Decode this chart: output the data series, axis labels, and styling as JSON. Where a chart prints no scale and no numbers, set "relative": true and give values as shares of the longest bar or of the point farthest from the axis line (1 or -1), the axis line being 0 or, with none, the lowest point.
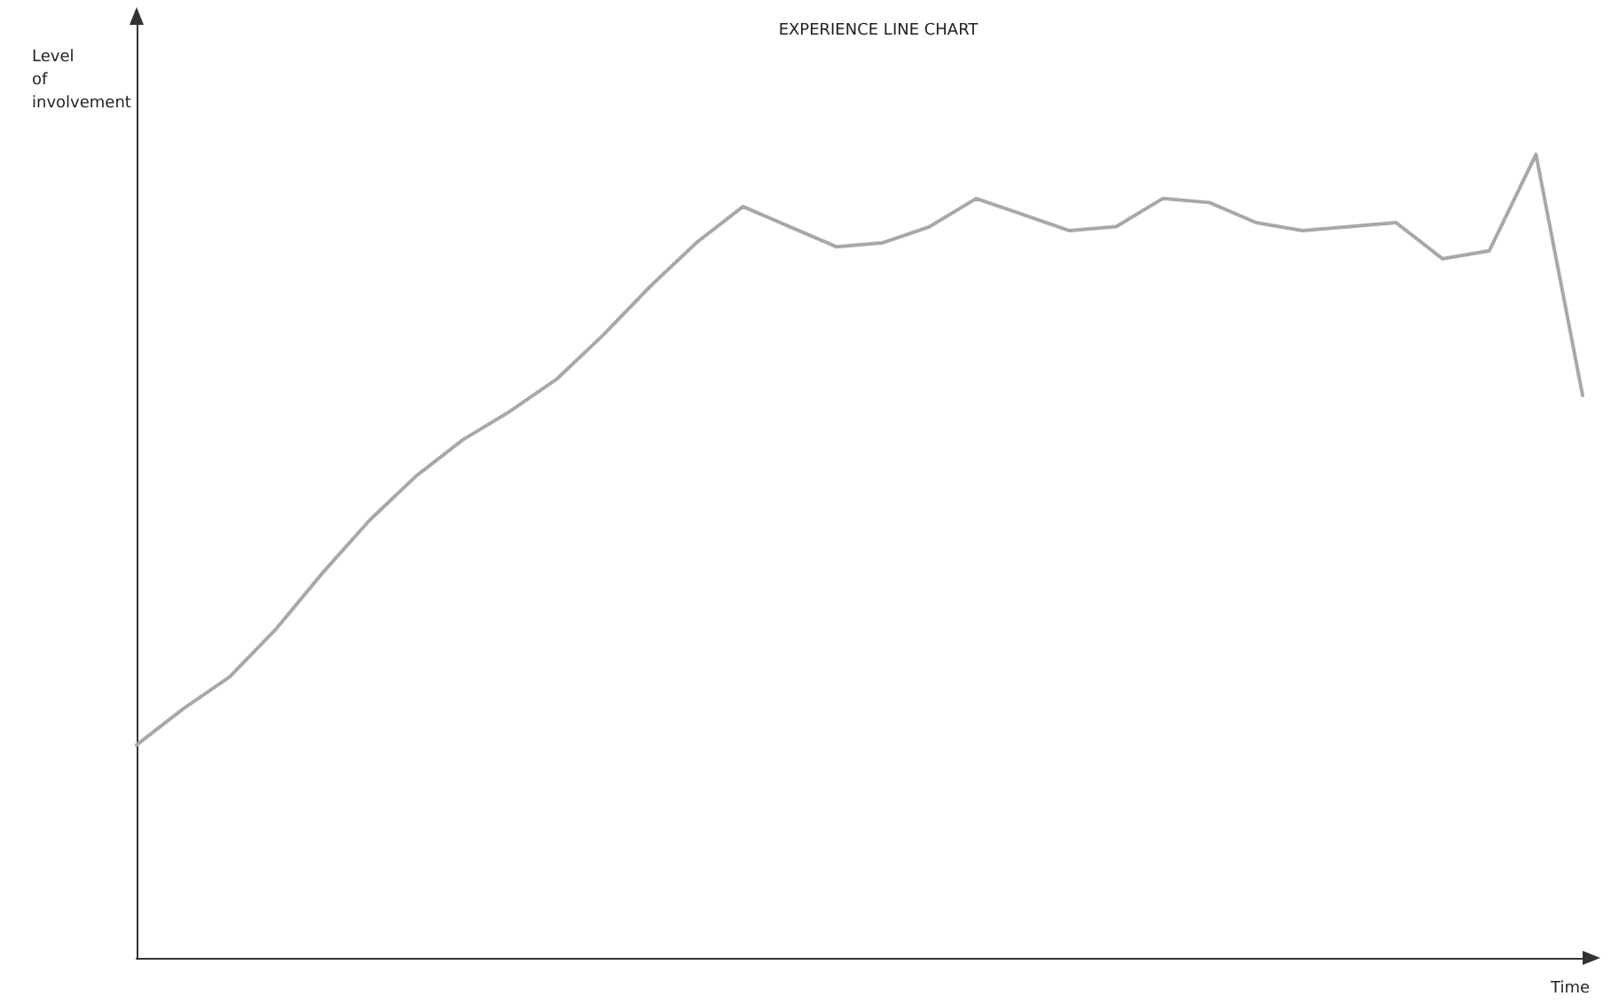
{
  "chart_data": {
    "type": "line",
    "title": "EXPERIENCE LINE CHART",
    "xlabel": "Time",
    "ylabel": "Level\nof\ninvolvement",
    "relative": true,
    "categories": [
      null,
      null,
      null,
      null,
      null,
      null,
      null,
      null,
      null,
      null,
      null,
      null,
      null,
      null,
      null,
      null,
      null,
      null,
      null,
      null,
      null,
      null,
      null,
      null,
      null,
      null,
      null,
      null,
      null,
      null,
      null,
      null
    ],
    "series": [
      {
        "color": "#a8a8a8",
        "values": [
          0.265,
          0.31,
          0.35,
          0.41,
          0.48,
          0.545,
          0.6,
          0.645,
          0.68,
          0.72,
          0.775,
          0.835,
          0.89,
          0.935,
          0.91,
          0.885,
          0.89,
          0.91,
          0.945,
          0.925,
          0.905,
          0.91,
          0.945,
          0.94,
          0.915,
          0.905,
          0.91,
          0.915,
          0.87,
          0.88,
          1,
          0.7
        ]
      }
    ],
    "grid": false,
    "marker": "none",
    "line_style": "solid"
  }
}
